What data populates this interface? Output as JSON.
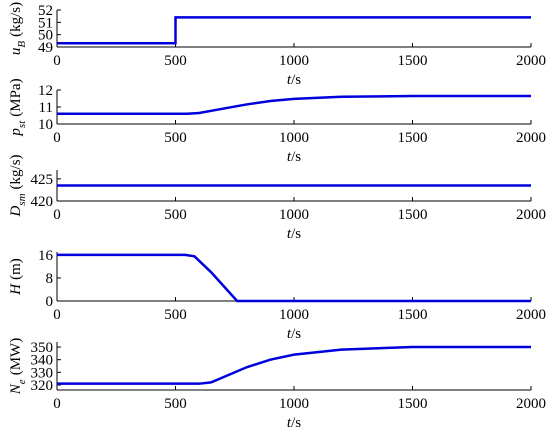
{
  "chart_data": [
    {
      "type": "line",
      "ylabel": {
        "symbol": "u",
        "subscript": "B",
        "unit": "(kg/s)"
      },
      "xlabel": {
        "symbol": "t",
        "unit": "/s"
      },
      "xlim": [
        0,
        2000
      ],
      "xticks": [
        0,
        500,
        1000,
        1500,
        2000
      ],
      "ylim": [
        49,
        52
      ],
      "yticks": [
        49,
        50,
        51,
        52
      ],
      "color": "#0000dd",
      "x": [
        0,
        500,
        500,
        2000
      ],
      "values": [
        49.3,
        49.3,
        51.4,
        51.4
      ]
    },
    {
      "type": "line",
      "ylabel": {
        "symbol": "p",
        "subscript": "st",
        "unit": "(MPa)"
      },
      "xlabel": {
        "symbol": "t",
        "unit": "/s"
      },
      "xlim": [
        0,
        2000
      ],
      "xticks": [
        0,
        500,
        1000,
        1500,
        2000
      ],
      "ylim": [
        10,
        12
      ],
      "yticks": [
        10,
        11,
        12
      ],
      "color": "#0000dd",
      "x": [
        0,
        550,
        600,
        700,
        800,
        900,
        1000,
        1200,
        1500,
        2000
      ],
      "values": [
        10.6,
        10.6,
        10.65,
        10.9,
        11.15,
        11.35,
        11.48,
        11.6,
        11.65,
        11.65
      ]
    },
    {
      "type": "line",
      "ylabel": {
        "symbol": "D",
        "subscript": "sm",
        "unit": "(kg/s)"
      },
      "xlabel": {
        "symbol": "t",
        "unit": "/s"
      },
      "xlim": [
        0,
        2000
      ],
      "xticks": [
        0,
        500,
        1000,
        1500,
        2000
      ],
      "ylim": [
        420,
        427
      ],
      "yticks": [
        420,
        425
      ],
      "color": "#0000dd",
      "x": [
        0,
        2000
      ],
      "values": [
        423.5,
        423.5
      ]
    },
    {
      "type": "line",
      "ylabel": {
        "symbol": "H",
        "subscript": "",
        "unit": "(m)"
      },
      "xlabel": {
        "symbol": "t",
        "unit": "/s"
      },
      "xlim": [
        0,
        2000
      ],
      "xticks": [
        0,
        500,
        1000,
        1500,
        2000
      ],
      "ylim": [
        0,
        17
      ],
      "yticks": [
        0,
        8,
        16
      ],
      "color": "#0000dd",
      "x": [
        0,
        540,
        580,
        650,
        760,
        2000
      ],
      "values": [
        16,
        16,
        15.5,
        10,
        0,
        0
      ]
    },
    {
      "type": "line",
      "ylabel": {
        "symbol": "N",
        "subscript": "e",
        "unit": "(MW)"
      },
      "xlabel": {
        "symbol": "t",
        "unit": "/s"
      },
      "xlim": [
        0,
        2000
      ],
      "xticks": [
        0,
        500,
        1000,
        1500,
        2000
      ],
      "ylim": [
        316,
        354
      ],
      "yticks": [
        320,
        330,
        340,
        350
      ],
      "color": "#0000dd",
      "x": [
        0,
        600,
        650,
        700,
        800,
        900,
        1000,
        1200,
        1500,
        2000
      ],
      "values": [
        321,
        321,
        322,
        326,
        334,
        340,
        344,
        348,
        350,
        350
      ]
    }
  ]
}
